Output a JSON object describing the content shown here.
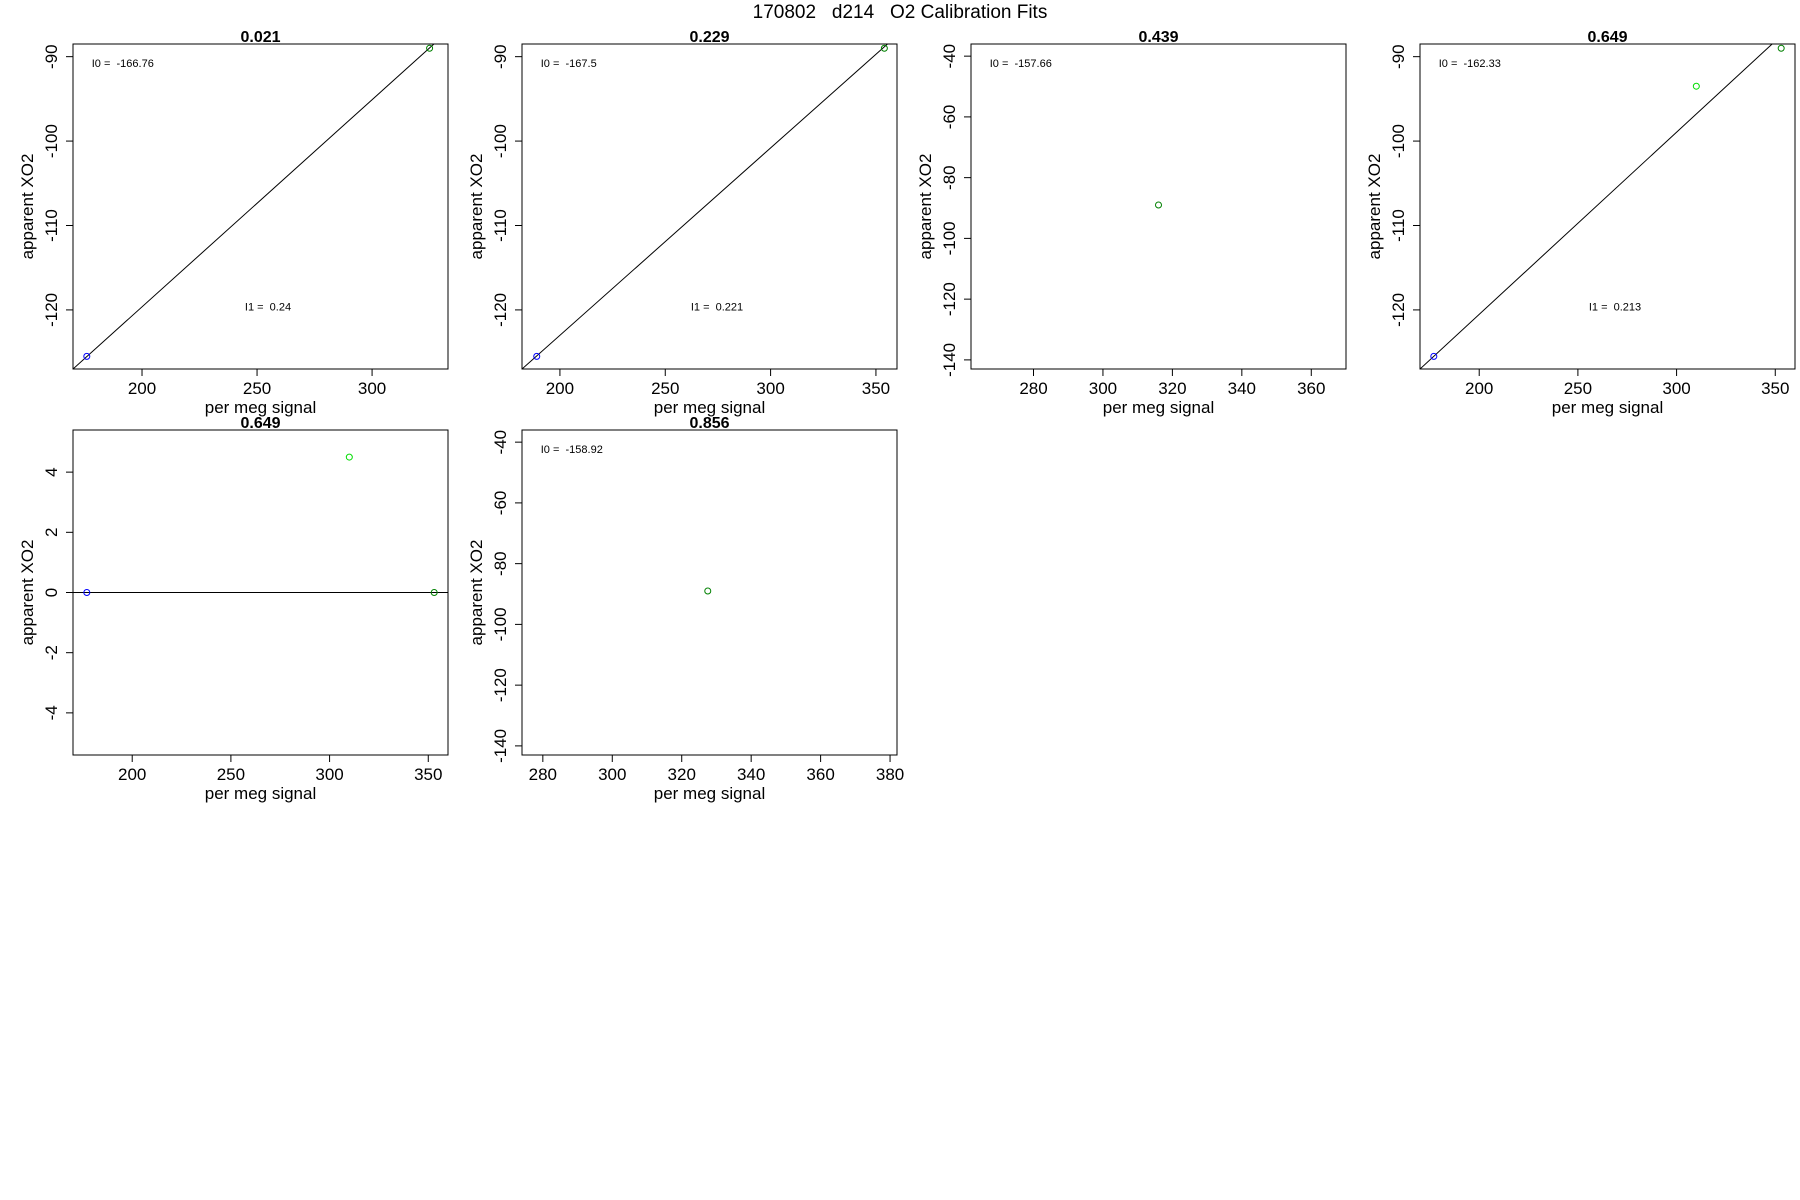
{
  "title": "170802   d214   O2 Calibration Fits",
  "colors": {
    "axis": "#000000",
    "fit_line": "#000000",
    "blue": "#0000ff",
    "darkgreen": "#008000",
    "lightgreen": "#00dd00"
  },
  "chart_data": [
    {
      "type": "scatter",
      "title": "0.021",
      "xlabel": "per meg signal",
      "ylabel": "apparent XO2",
      "xlim": [
        170,
        333
      ],
      "ylim": [
        -127,
        -88.5
      ],
      "xticks": [
        200,
        250,
        300
      ],
      "yticks": [
        -90,
        -100,
        -110,
        -120
      ],
      "points": [
        {
          "x": 176,
          "y": -125.5,
          "color": "blue"
        },
        {
          "x": 325,
          "y": -89,
          "color": "darkgreen"
        }
      ],
      "fit_line": [
        {
          "x": 170,
          "y": -127
        },
        {
          "x": 333,
          "y": -87
        }
      ],
      "annotations": [
        "I0 =  -166.76",
        "I1 =  0.24"
      ]
    },
    {
      "type": "scatter",
      "title": "0.229",
      "xlabel": "per meg signal",
      "ylabel": "apparent XO2",
      "xlim": [
        182,
        360
      ],
      "ylim": [
        -127,
        -88.5
      ],
      "xticks": [
        200,
        250,
        300,
        350
      ],
      "yticks": [
        -90,
        -100,
        -110,
        -120
      ],
      "points": [
        {
          "x": 189,
          "y": -125.5,
          "color": "blue"
        },
        {
          "x": 354,
          "y": -89,
          "color": "darkgreen"
        }
      ],
      "fit_line": [
        {
          "x": 182,
          "y": -127
        },
        {
          "x": 360,
          "y": -87.5
        }
      ],
      "annotations": [
        "I0 =  -167.5",
        "I1 =  0.221"
      ]
    },
    {
      "type": "scatter",
      "title": "0.439",
      "xlabel": "per meg signal",
      "ylabel": "apparent XO2",
      "xlim": [
        262,
        370
      ],
      "ylim": [
        -143,
        -36
      ],
      "xticks": [
        280,
        300,
        320,
        340,
        360
      ],
      "yticks": [
        -40,
        -60,
        -80,
        -100,
        -120,
        -140
      ],
      "points": [
        {
          "x": 316,
          "y": -89,
          "color": "darkgreen"
        }
      ],
      "fit_line": [],
      "annotations": [
        "I0 =  -157.66"
      ]
    },
    {
      "type": "scatter",
      "title": "0.649",
      "xlabel": "per meg signal",
      "ylabel": "apparent XO2",
      "xlim": [
        170,
        360
      ],
      "ylim": [
        -127,
        -88.5
      ],
      "xticks": [
        200,
        250,
        300,
        350
      ],
      "yticks": [
        -90,
        -100,
        -110,
        -120
      ],
      "points": [
        {
          "x": 177,
          "y": -125.5,
          "color": "blue"
        },
        {
          "x": 310,
          "y": -93.5,
          "color": "lightgreen"
        },
        {
          "x": 353,
          "y": -89,
          "color": "darkgreen"
        }
      ],
      "fit_line": [
        {
          "x": 170,
          "y": -127
        },
        {
          "x": 360,
          "y": -86
        }
      ],
      "annotations": [
        "I0 =  -162.33",
        "I1 =  0.213"
      ]
    },
    {
      "type": "scatter",
      "title": "0.649",
      "xlabel": "per meg signal",
      "ylabel": "apparent XO2",
      "xlim": [
        170,
        360
      ],
      "ylim": [
        -5.4,
        5.4
      ],
      "xticks": [
        200,
        250,
        300,
        350
      ],
      "yticks": [
        4,
        2,
        0,
        -2,
        -4
      ],
      "points": [
        {
          "x": 177,
          "y": 0,
          "color": "blue"
        },
        {
          "x": 310,
          "y": 4.5,
          "color": "lightgreen"
        },
        {
          "x": 353,
          "y": 0,
          "color": "darkgreen"
        }
      ],
      "fit_line": [
        {
          "x": 170,
          "y": 0
        },
        {
          "x": 360,
          "y": 0
        }
      ],
      "annotations": []
    },
    {
      "type": "scatter",
      "title": "0.856",
      "xlabel": "per meg signal",
      "ylabel": "apparent XO2",
      "xlim": [
        274,
        382
      ],
      "ylim": [
        -143,
        -36
      ],
      "xticks": [
        280,
        300,
        320,
        340,
        360,
        380
      ],
      "yticks": [
        -40,
        -60,
        -80,
        -100,
        -120,
        -140
      ],
      "points": [
        {
          "x": 327.5,
          "y": -89,
          "color": "darkgreen"
        }
      ],
      "fit_line": [],
      "annotations": [
        "I0 =  -158.92"
      ]
    }
  ]
}
